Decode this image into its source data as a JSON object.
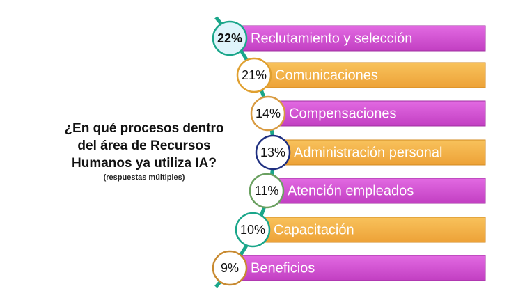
{
  "question": {
    "lines": [
      "¿En qué procesos dentro",
      "del área de Recursos",
      "Humanos ya utiliza IA?"
    ],
    "note": "(respuestas múltiples)"
  },
  "items": [
    {
      "percent": "22%",
      "label": "Reclutamiento y selección"
    },
    {
      "percent": "21%",
      "label": "Comunicaciones"
    },
    {
      "percent": "14%",
      "label": "Compensaciones"
    },
    {
      "percent": "13%",
      "label": "Administración personal"
    },
    {
      "percent": "11%",
      "label": "Atención empleados"
    },
    {
      "percent": "10%",
      "label": "Capacitación"
    },
    {
      "percent": "9%",
      "label": "Beneficios"
    }
  ]
}
